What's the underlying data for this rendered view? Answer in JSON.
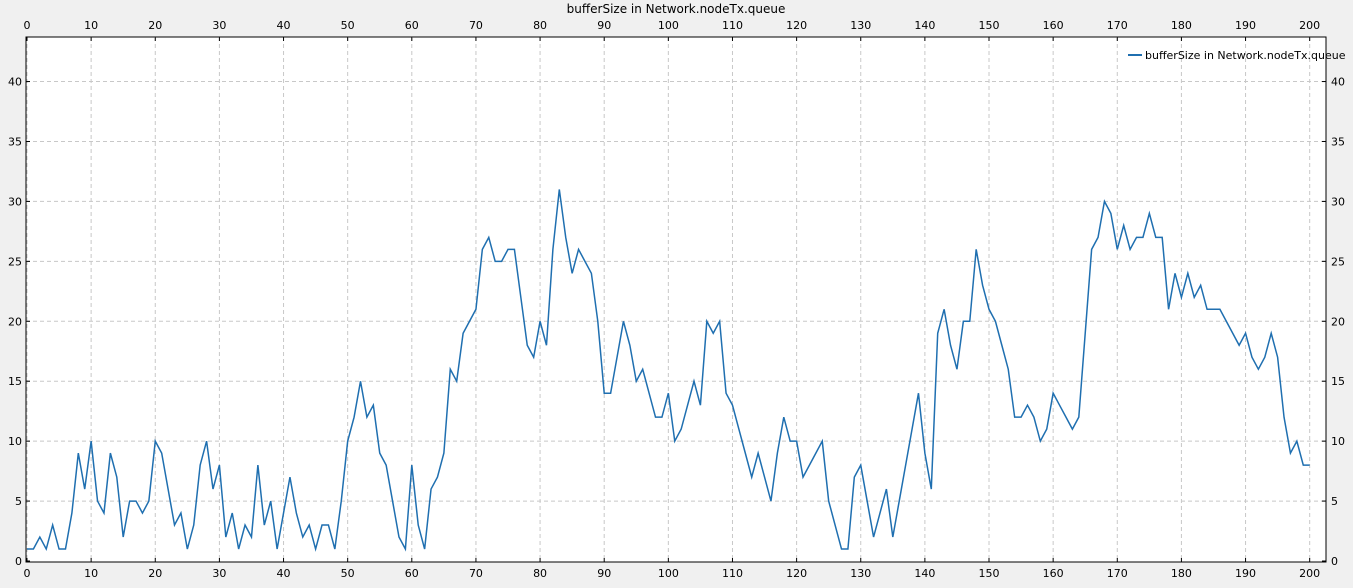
{
  "chart_data": {
    "type": "line",
    "title": "bufferSize in Network.nodeTx.queue",
    "x": [
      0,
      1,
      2,
      3,
      4,
      5,
      6,
      7,
      8,
      9,
      10,
      11,
      12,
      13,
      14,
      15,
      16,
      17,
      18,
      19,
      20,
      21,
      22,
      23,
      24,
      25,
      26,
      27,
      28,
      29,
      30,
      31,
      32,
      33,
      34,
      35,
      36,
      37,
      38,
      39,
      40,
      41,
      42,
      43,
      44,
      45,
      46,
      47,
      48,
      49,
      50,
      51,
      52,
      53,
      54,
      55,
      56,
      57,
      58,
      59,
      60,
      61,
      62,
      63,
      64,
      65,
      66,
      67,
      68,
      69,
      70,
      71,
      72,
      73,
      74,
      75,
      76,
      77,
      78,
      79,
      80,
      81,
      82,
      83,
      84,
      85,
      86,
      87,
      88,
      89,
      90,
      91,
      92,
      93,
      94,
      95,
      96,
      97,
      98,
      99,
      100,
      101,
      102,
      103,
      104,
      105,
      106,
      107,
      108,
      109,
      110,
      111,
      112,
      113,
      114,
      115,
      116,
      117,
      118,
      119,
      120,
      121,
      122,
      123,
      124,
      125,
      126,
      127,
      128,
      129,
      130,
      131,
      132,
      133,
      134,
      135,
      136,
      137,
      138,
      139,
      140,
      141,
      142,
      143,
      144,
      145,
      146,
      147,
      148,
      149,
      150,
      151,
      152,
      153,
      154,
      155,
      156,
      157,
      158,
      159,
      160,
      161,
      162,
      163,
      164,
      165,
      166,
      167,
      168,
      169,
      170,
      171,
      172,
      173,
      174,
      175,
      176,
      177,
      178,
      179,
      180,
      181,
      182,
      183,
      184,
      185,
      186,
      187,
      188,
      189,
      190,
      191,
      192,
      193,
      194,
      195,
      196,
      197,
      198,
      199,
      200
    ],
    "series": [
      {
        "name": "bufferSize in Network.nodeTx.queue",
        "color": "#1f6fb0",
        "values": [
          1,
          1,
          2,
          1,
          3,
          1,
          1,
          4,
          9,
          6,
          10,
          5,
          4,
          9,
          7,
          2,
          5,
          5,
          4,
          5,
          10,
          9,
          6,
          3,
          4,
          1,
          3,
          8,
          10,
          6,
          8,
          2,
          4,
          1,
          3,
          2,
          8,
          3,
          5,
          1,
          4,
          7,
          4,
          2,
          3,
          1,
          3,
          3,
          1,
          5,
          10,
          12,
          15,
          12,
          13,
          9,
          8,
          5,
          2,
          1,
          8,
          3,
          1,
          6,
          7,
          9,
          16,
          15,
          19,
          20,
          21,
          26,
          27,
          25,
          25,
          26,
          26,
          22,
          18,
          17,
          20,
          18,
          26,
          31,
          27,
          24,
          26,
          25,
          24,
          20,
          14,
          14,
          17,
          20,
          18,
          15,
          16,
          14,
          12,
          12,
          14,
          10,
          11,
          13,
          15,
          13,
          20,
          19,
          20,
          14,
          13,
          11,
          9,
          7,
          9,
          7,
          5,
          9,
          12,
          10,
          10,
          7,
          8,
          9,
          10,
          5,
          3,
          1,
          1,
          7,
          8,
          5,
          2,
          4,
          6,
          2,
          5,
          8,
          11,
          14,
          9,
          6,
          19,
          21,
          18,
          16,
          20,
          20,
          26,
          23,
          21,
          20,
          18,
          16,
          12,
          12,
          13,
          12,
          10,
          11,
          14,
          13,
          12,
          11,
          12,
          19,
          26,
          27,
          30,
          29,
          26,
          28,
          26,
          27,
          27,
          29,
          27,
          27,
          21,
          24,
          22,
          24,
          22,
          23,
          21,
          21,
          21,
          20,
          19,
          18,
          19,
          17,
          16,
          17,
          19,
          17,
          12,
          9,
          10,
          8,
          8
        ]
      }
    ],
    "xlim": [
      0,
      202.7
    ],
    "ylim": [
      0,
      43.8
    ],
    "xticks": [
      0,
      10,
      20,
      30,
      40,
      50,
      60,
      70,
      80,
      90,
      100,
      110,
      120,
      130,
      140,
      150,
      160,
      170,
      180,
      190,
      200
    ],
    "yticks": [
      0,
      5,
      10,
      15,
      20,
      25,
      30,
      35,
      40
    ],
    "grid": true,
    "legend": "top-right"
  }
}
